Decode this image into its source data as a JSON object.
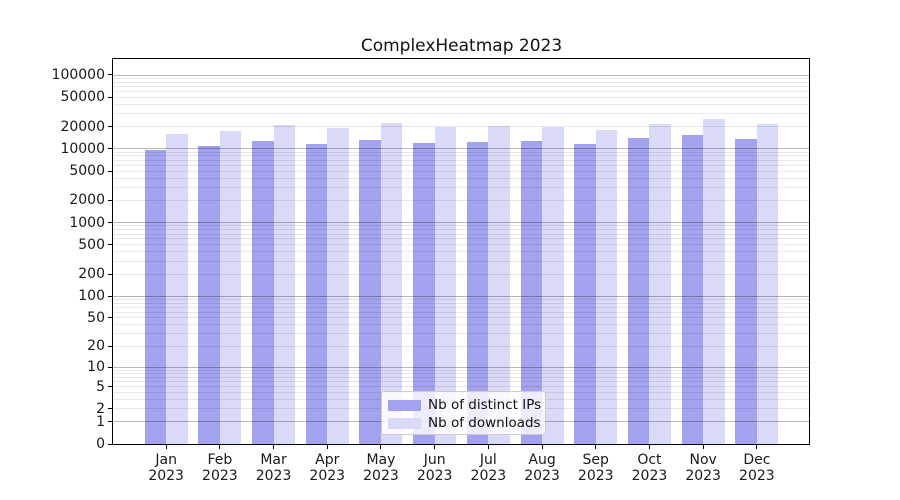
{
  "figure": {
    "background": "#ffffff"
  },
  "chart_data": {
    "type": "bar",
    "title": "ComplexHeatmap 2023",
    "categories": [
      "Jan",
      "Feb",
      "Mar",
      "Apr",
      "May",
      "Jun",
      "Jul",
      "Aug",
      "Sep",
      "Oct",
      "Nov",
      "Dec"
    ],
    "category_year": "2023",
    "series": [
      {
        "name": "Nb of distinct IPs",
        "color": "#a2a2ef",
        "values": [
          9500,
          10800,
          12600,
          11500,
          13200,
          12100,
          12300,
          12600,
          11600,
          14000,
          15500,
          13600
        ]
      },
      {
        "name": "Nb of downloads",
        "color": "#d9d9f8",
        "values": [
          16000,
          17300,
          21200,
          19000,
          22200,
          19600,
          20400,
          20000,
          18000,
          22000,
          25300,
          21500
        ]
      }
    ],
    "xlabel": "",
    "ylabel": "",
    "yscale": "log1p",
    "ylim": [
      0,
      164000
    ],
    "yticks": [
      "100000",
      "50000",
      "20000",
      "10000",
      "5000",
      "2000",
      "1000",
      "500",
      "200",
      "100",
      "50",
      "20",
      "10",
      "5",
      "2",
      "1",
      "0"
    ],
    "grid": true,
    "legend_position": "lower center",
    "colors": {
      "major_grid": "#b8b8b8",
      "minor_grid": "#e9e9e9",
      "axis": "#000000",
      "text": "#1a1a1a"
    }
  }
}
